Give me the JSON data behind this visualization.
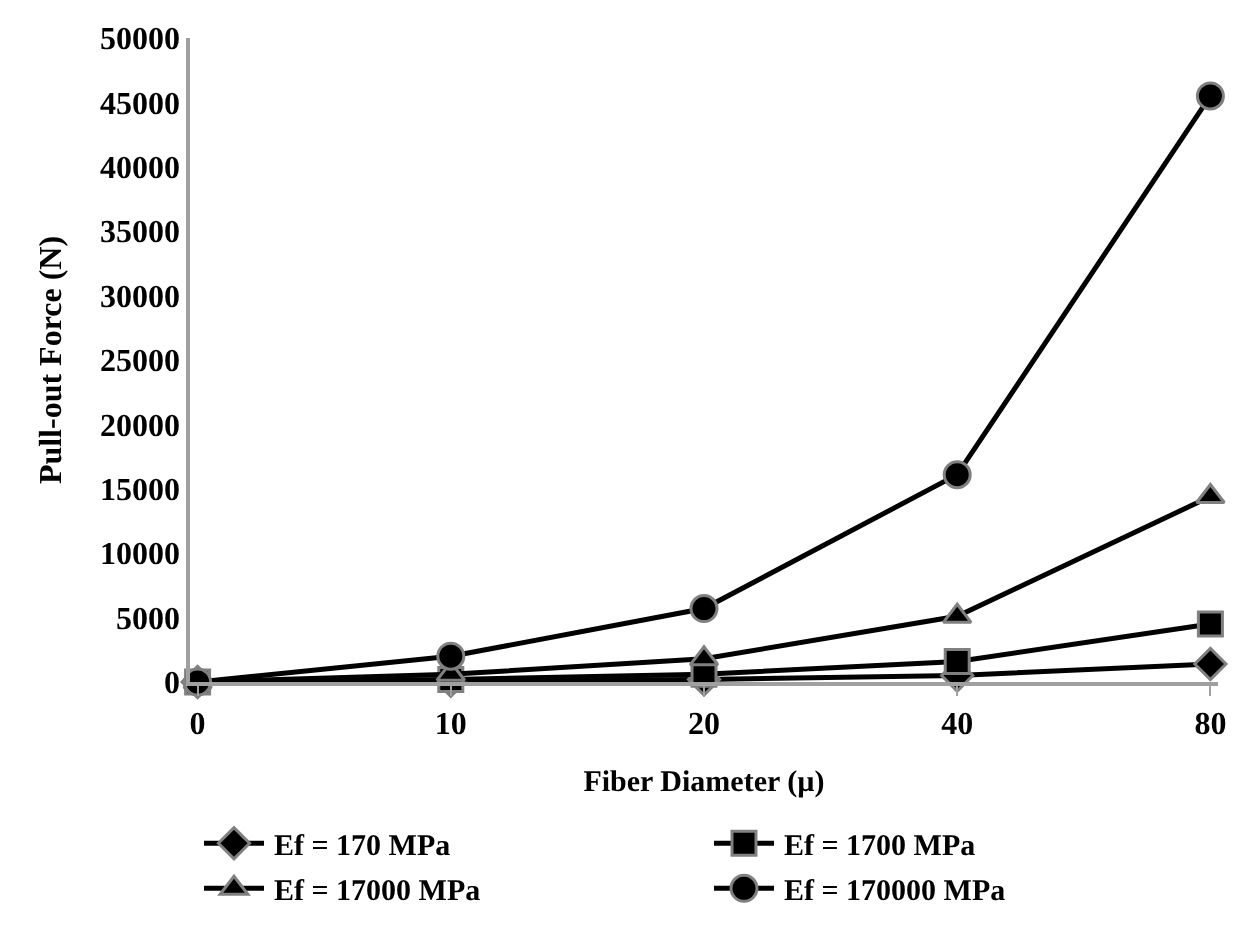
{
  "chart_data": {
    "type": "line",
    "xlabel": "Fiber Diameter (µ)",
    "ylabel": "Pull-out Force (N)",
    "categories": [
      "0",
      "10",
      "20",
      "40",
      "80"
    ],
    "series": [
      {
        "name": "Ef = 170 MPa",
        "color": "#000000",
        "marker": "diamond",
        "values": [
          0,
          100,
          200,
          500,
          1400
        ]
      },
      {
        "name": "Ef = 1700 MPa",
        "color": "#000000",
        "marker": "square",
        "values": [
          0,
          200,
          600,
          1600,
          4500
        ]
      },
      {
        "name": "Ef = 17000 MPa",
        "color": "#000000",
        "marker": "triangle",
        "values": [
          0,
          600,
          1800,
          5100,
          14400
        ]
      },
      {
        "name": "Ef = 170000 MPa",
        "color": "#000000",
        "marker": "circle",
        "values": [
          0,
          2000,
          5700,
          16100,
          45500
        ]
      }
    ],
    "ylim": [
      0,
      50000
    ],
    "yticks": [
      0,
      5000,
      10000,
      15000,
      20000,
      25000,
      30000,
      35000,
      40000,
      45000,
      50000
    ],
    "legend": "bottom",
    "line_style": "solid"
  }
}
